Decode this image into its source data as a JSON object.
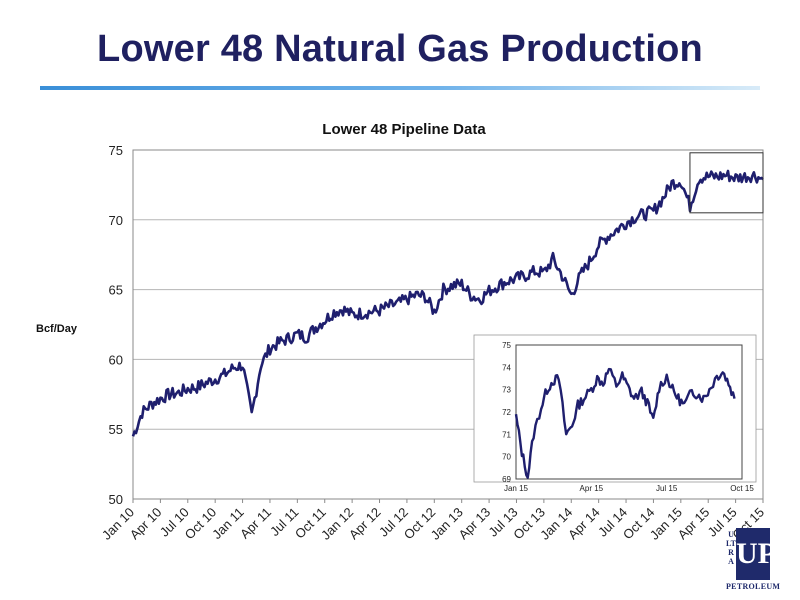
{
  "slide": {
    "title": "Lower 48 Natural Gas Production",
    "rule_color": "#3a8fd8",
    "title_color": "#1f2060"
  },
  "logo": {
    "mark": "UP",
    "vertical_text": "ULTRA",
    "word": "PETROLEUM",
    "color": "#1f2a6b"
  },
  "chart_data": [
    {
      "type": "line",
      "title": "Lower 48 Pipeline Data",
      "ylabel": "Bcf/Day",
      "xlabel": "",
      "ylim": [
        50,
        75
      ],
      "yticks": [
        50,
        55,
        60,
        65,
        70,
        75
      ],
      "xlim": [
        "2010-01",
        "2015-10"
      ],
      "xticks": [
        "Jan 10",
        "Apr 10",
        "Jul 10",
        "Oct 10",
        "Jan 11",
        "Apr 11",
        "Jul 11",
        "Oct 11",
        "Jan 12",
        "Apr 12",
        "Jul 12",
        "Oct 12",
        "Jan 13",
        "Apr 13",
        "Jul 13",
        "Oct 13",
        "Jan 14",
        "Apr 14",
        "Jul 14",
        "Oct 14",
        "Jan 15",
        "Apr 15",
        "Jul 15",
        "Oct 15"
      ],
      "grid": "horizontal",
      "line_color": "#1f1f6e",
      "highlight_box": {
        "x_from": "2015-02",
        "x_to": "2015-10",
        "y_from": 70.5,
        "y_to": 74.8
      },
      "series": [
        {
          "x": [
            "2010-01",
            "2010-02",
            "2010-03",
            "2010-04",
            "2010-05",
            "2010-06",
            "2010-07",
            "2010-08",
            "2010-09",
            "2010-10",
            "2010-11",
            "2010-12",
            "2011-01",
            "2011-02",
            "2011-03",
            "2011-04",
            "2011-05",
            "2011-06",
            "2011-07",
            "2011-08",
            "2011-09",
            "2011-10",
            "2011-11",
            "2011-12",
            "2012-01",
            "2012-02",
            "2012-03",
            "2012-04",
            "2012-05",
            "2012-06",
            "2012-07",
            "2012-08",
            "2012-09",
            "2012-10",
            "2012-11",
            "2012-12",
            "2013-01",
            "2013-02",
            "2013-03",
            "2013-04",
            "2013-05",
            "2013-06",
            "2013-07",
            "2013-08",
            "2013-09",
            "2013-10",
            "2013-11",
            "2013-12",
            "2014-01",
            "2014-02",
            "2014-03",
            "2014-04",
            "2014-05",
            "2014-06",
            "2014-07",
            "2014-08",
            "2014-09",
            "2014-10",
            "2014-11",
            "2014-12",
            "2015-01",
            "2015-02",
            "2015-03",
            "2015-04",
            "2015-05",
            "2015-06",
            "2015-07",
            "2015-08",
            "2015-09",
            "2015-10"
          ],
          "values": [
            54.5,
            56.2,
            56.8,
            57.2,
            57.5,
            57.6,
            57.9,
            58.0,
            58.3,
            58.6,
            58.9,
            59.4,
            59.6,
            56.0,
            59.6,
            60.8,
            61.2,
            61.5,
            61.8,
            61.6,
            62.3,
            62.8,
            63.4,
            63.6,
            63.2,
            63.3,
            63.4,
            63.5,
            63.8,
            64.0,
            64.3,
            64.6,
            64.5,
            63.4,
            65.0,
            65.3,
            65.4,
            64.6,
            64.3,
            64.9,
            65.3,
            65.6,
            65.8,
            66.0,
            66.3,
            66.2,
            67.2,
            66.0,
            64.6,
            66.0,
            67.0,
            68.2,
            68.8,
            69.3,
            69.8,
            70.2,
            70.4,
            70.6,
            71.5,
            72.6,
            72.8,
            71.0,
            73.0,
            73.1,
            73.1,
            73.2,
            73.0,
            73.1,
            73.2,
            72.9
          ]
        }
      ]
    },
    {
      "type": "line",
      "title": "",
      "ylim": [
        69,
        75
      ],
      "yticks": [
        69,
        70,
        71,
        72,
        73,
        74,
        75
      ],
      "xlim": [
        "2015-01",
        "2015-10"
      ],
      "xticks": [
        "Jan 15",
        "Apr 15",
        "Jul 15",
        "Oct 15"
      ],
      "grid": "none",
      "line_color": "#1f1f6e",
      "series": [
        {
          "x": [
            "2015-01-01",
            "2015-01-08",
            "2015-01-15",
            "2015-01-22",
            "2015-02-01",
            "2015-02-08",
            "2015-02-15",
            "2015-02-22",
            "2015-03-01",
            "2015-03-08",
            "2015-03-15",
            "2015-03-22",
            "2015-04-01",
            "2015-04-08",
            "2015-04-15",
            "2015-04-22",
            "2015-05-01",
            "2015-05-08",
            "2015-05-15",
            "2015-05-22",
            "2015-06-01",
            "2015-06-08",
            "2015-06-15",
            "2015-06-22",
            "2015-07-01",
            "2015-07-08",
            "2015-07-15",
            "2015-07-22",
            "2015-08-01",
            "2015-08-08",
            "2015-08-15",
            "2015-08-22",
            "2015-09-01",
            "2015-09-08",
            "2015-09-15",
            "2015-09-22"
          ],
          "values": [
            71.8,
            70.2,
            69.1,
            71.0,
            72.2,
            73.0,
            73.4,
            73.5,
            71.0,
            71.4,
            72.3,
            72.6,
            73.0,
            73.5,
            73.3,
            73.9,
            73.2,
            73.6,
            73.1,
            72.6,
            72.9,
            72.4,
            71.6,
            73.1,
            73.6,
            73.0,
            72.6,
            72.3,
            72.9,
            72.8,
            72.6,
            73.0,
            73.6,
            73.8,
            73.3,
            72.6
          ]
        }
      ]
    }
  ]
}
